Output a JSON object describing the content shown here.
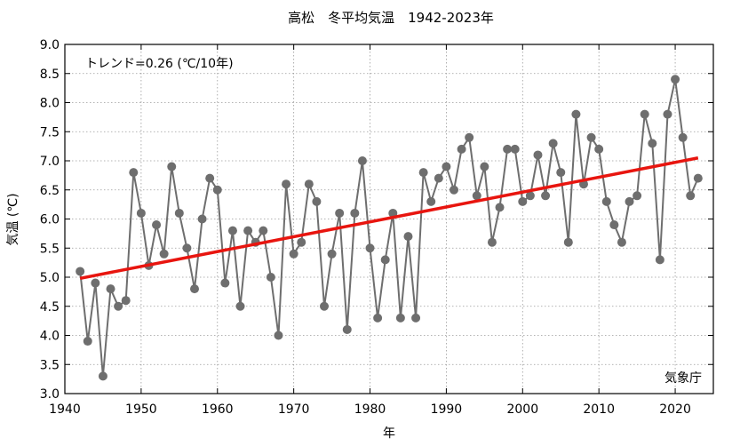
{
  "chart_data": {
    "type": "line",
    "title": "高松　冬平均気温　1942-2023年",
    "xlabel": "年",
    "ylabel": "気温 (℃)",
    "xlim": [
      1940,
      2025
    ],
    "ylim": [
      3.0,
      9.0
    ],
    "xticks": [
      1940,
      1950,
      1960,
      1970,
      1980,
      1990,
      2000,
      2010,
      2020
    ],
    "yticks": [
      "3.0",
      "3.5",
      "4.0",
      "4.5",
      "5.0",
      "5.5",
      "6.0",
      "6.5",
      "7.0",
      "7.5",
      "8.0",
      "8.5",
      "9.0"
    ],
    "grid": true,
    "trend_label": "トレンド=0.26 (℃/10年)",
    "credit": "気象庁",
    "colors": {
      "series": "#6e6e6e",
      "trend": "#e8150f",
      "grid": "#9a9a9a"
    },
    "series": [
      {
        "x": [
          1942,
          1943,
          1944,
          1945,
          1946,
          1947,
          1948,
          1949,
          1950,
          1951,
          1952,
          1953,
          1954,
          1955,
          1956,
          1957,
          1958,
          1959,
          1960,
          1961,
          1962,
          1963,
          1964,
          1965,
          1966,
          1967,
          1968,
          1969,
          1970,
          1971,
          1972,
          1973,
          1974,
          1975,
          1976,
          1977,
          1978,
          1979,
          1980,
          1981,
          1982,
          1983,
          1984,
          1985,
          1986,
          1987,
          1988,
          1989,
          1990,
          1991,
          1992,
          1993,
          1994,
          1995,
          1996,
          1997,
          1998,
          1999,
          2000,
          2001,
          2002,
          2003,
          2004,
          2005,
          2006,
          2007,
          2008,
          2009,
          2010,
          2011,
          2012,
          2013,
          2014,
          2015,
          2016,
          2017,
          2018,
          2019,
          2020,
          2021,
          2022,
          2023
        ],
        "values": [
          5.1,
          3.9,
          4.9,
          3.3,
          4.8,
          4.5,
          4.6,
          6.8,
          6.1,
          5.2,
          5.9,
          5.4,
          6.9,
          6.1,
          5.5,
          4.8,
          6.0,
          6.7,
          6.5,
          4.9,
          5.8,
          4.5,
          5.8,
          5.6,
          5.8,
          5.0,
          4.0,
          6.6,
          5.4,
          5.6,
          6.6,
          6.3,
          4.5,
          5.4,
          6.1,
          4.1,
          6.1,
          7.0,
          5.5,
          4.3,
          5.3,
          6.1,
          4.3,
          5.7,
          4.3,
          6.8,
          6.3,
          6.7,
          6.9,
          6.5,
          7.2,
          7.4,
          6.4,
          6.9,
          5.6,
          6.2,
          7.2,
          7.2,
          6.3,
          6.4,
          7.1,
          6.4,
          7.3,
          6.8,
          5.6,
          7.8,
          6.6,
          7.4,
          7.2,
          6.3,
          5.9,
          5.6,
          6.3,
          6.4,
          7.8,
          7.3,
          5.3,
          7.8,
          8.4,
          7.4,
          6.4,
          6.7
        ]
      }
    ],
    "trend": {
      "x": [
        1942,
        2023
      ],
      "values": [
        4.98,
        7.05
      ]
    }
  }
}
